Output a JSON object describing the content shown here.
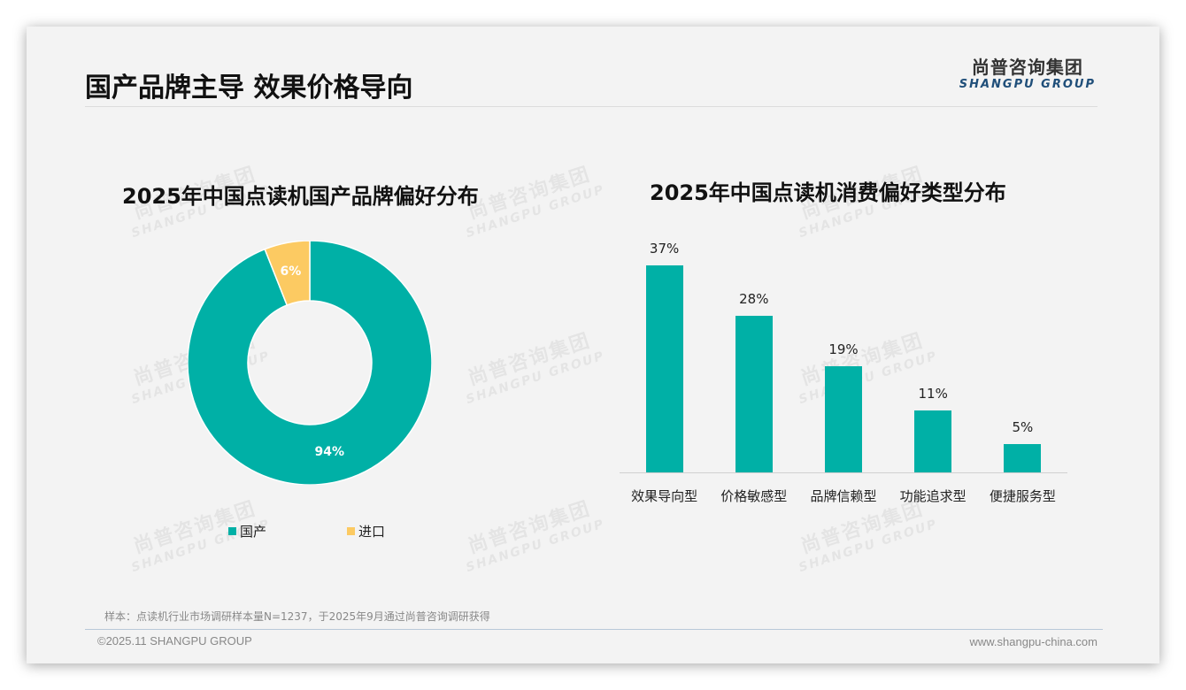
{
  "header": {
    "title": "国产品牌主导 效果价格导向",
    "logo_cn": "尚普咨询集团",
    "logo_en": "SHANGPU GROUP"
  },
  "watermark": {
    "cn": "尚普咨询集团",
    "en": "SHANGPU GROUP"
  },
  "colors": {
    "teal": "#00b0a6",
    "yellow": "#fcca62",
    "background": "#f3f3f3",
    "logo_blue": "#1f4e79"
  },
  "left_chart": {
    "title": "2025年中国点读机国产品牌偏好分布",
    "slices": [
      {
        "label": "国产",
        "value": 94,
        "display": "94%",
        "color": "#00b0a6"
      },
      {
        "label": "进口",
        "value": 6,
        "display": "6%",
        "color": "#fcca62"
      }
    ],
    "legend": [
      {
        "label": "国产",
        "color": "#00b0a6"
      },
      {
        "label": "进口",
        "color": "#fcca62"
      }
    ]
  },
  "right_chart": {
    "title": "2025年中国点读机消费偏好类型分布",
    "bars": [
      {
        "category": "效果导向型",
        "value": 37,
        "display": "37%"
      },
      {
        "category": "价格敏感型",
        "value": 28,
        "display": "28%"
      },
      {
        "category": "品牌信赖型",
        "value": 19,
        "display": "19%"
      },
      {
        "category": "功能追求型",
        "value": 11,
        "display": "11%"
      },
      {
        "category": "便捷服务型",
        "value": 5,
        "display": "5%"
      }
    ]
  },
  "chart_data": [
    {
      "type": "pie",
      "title": "2025年中国点读机国产品牌偏好分布",
      "categories": [
        "国产",
        "进口"
      ],
      "values": [
        94,
        6
      ],
      "unit": "%",
      "donut": true,
      "legend_position": "bottom"
    },
    {
      "type": "bar",
      "title": "2025年中国点读机消费偏好类型分布",
      "categories": [
        "效果导向型",
        "价格敏感型",
        "品牌信赖型",
        "功能追求型",
        "便捷服务型"
      ],
      "values": [
        37,
        28,
        19,
        11,
        5
      ],
      "unit": "%",
      "xlabel": "",
      "ylabel": "",
      "ylim": [
        0,
        40
      ],
      "grid": false
    }
  ],
  "footer": {
    "note": "样本：点读机行业市场调研样本量N=1237，于2025年9月通过尚普咨询调研获得",
    "copyright": "©2025.11 SHANGPU GROUP",
    "website": "www.shangpu-china.com"
  }
}
